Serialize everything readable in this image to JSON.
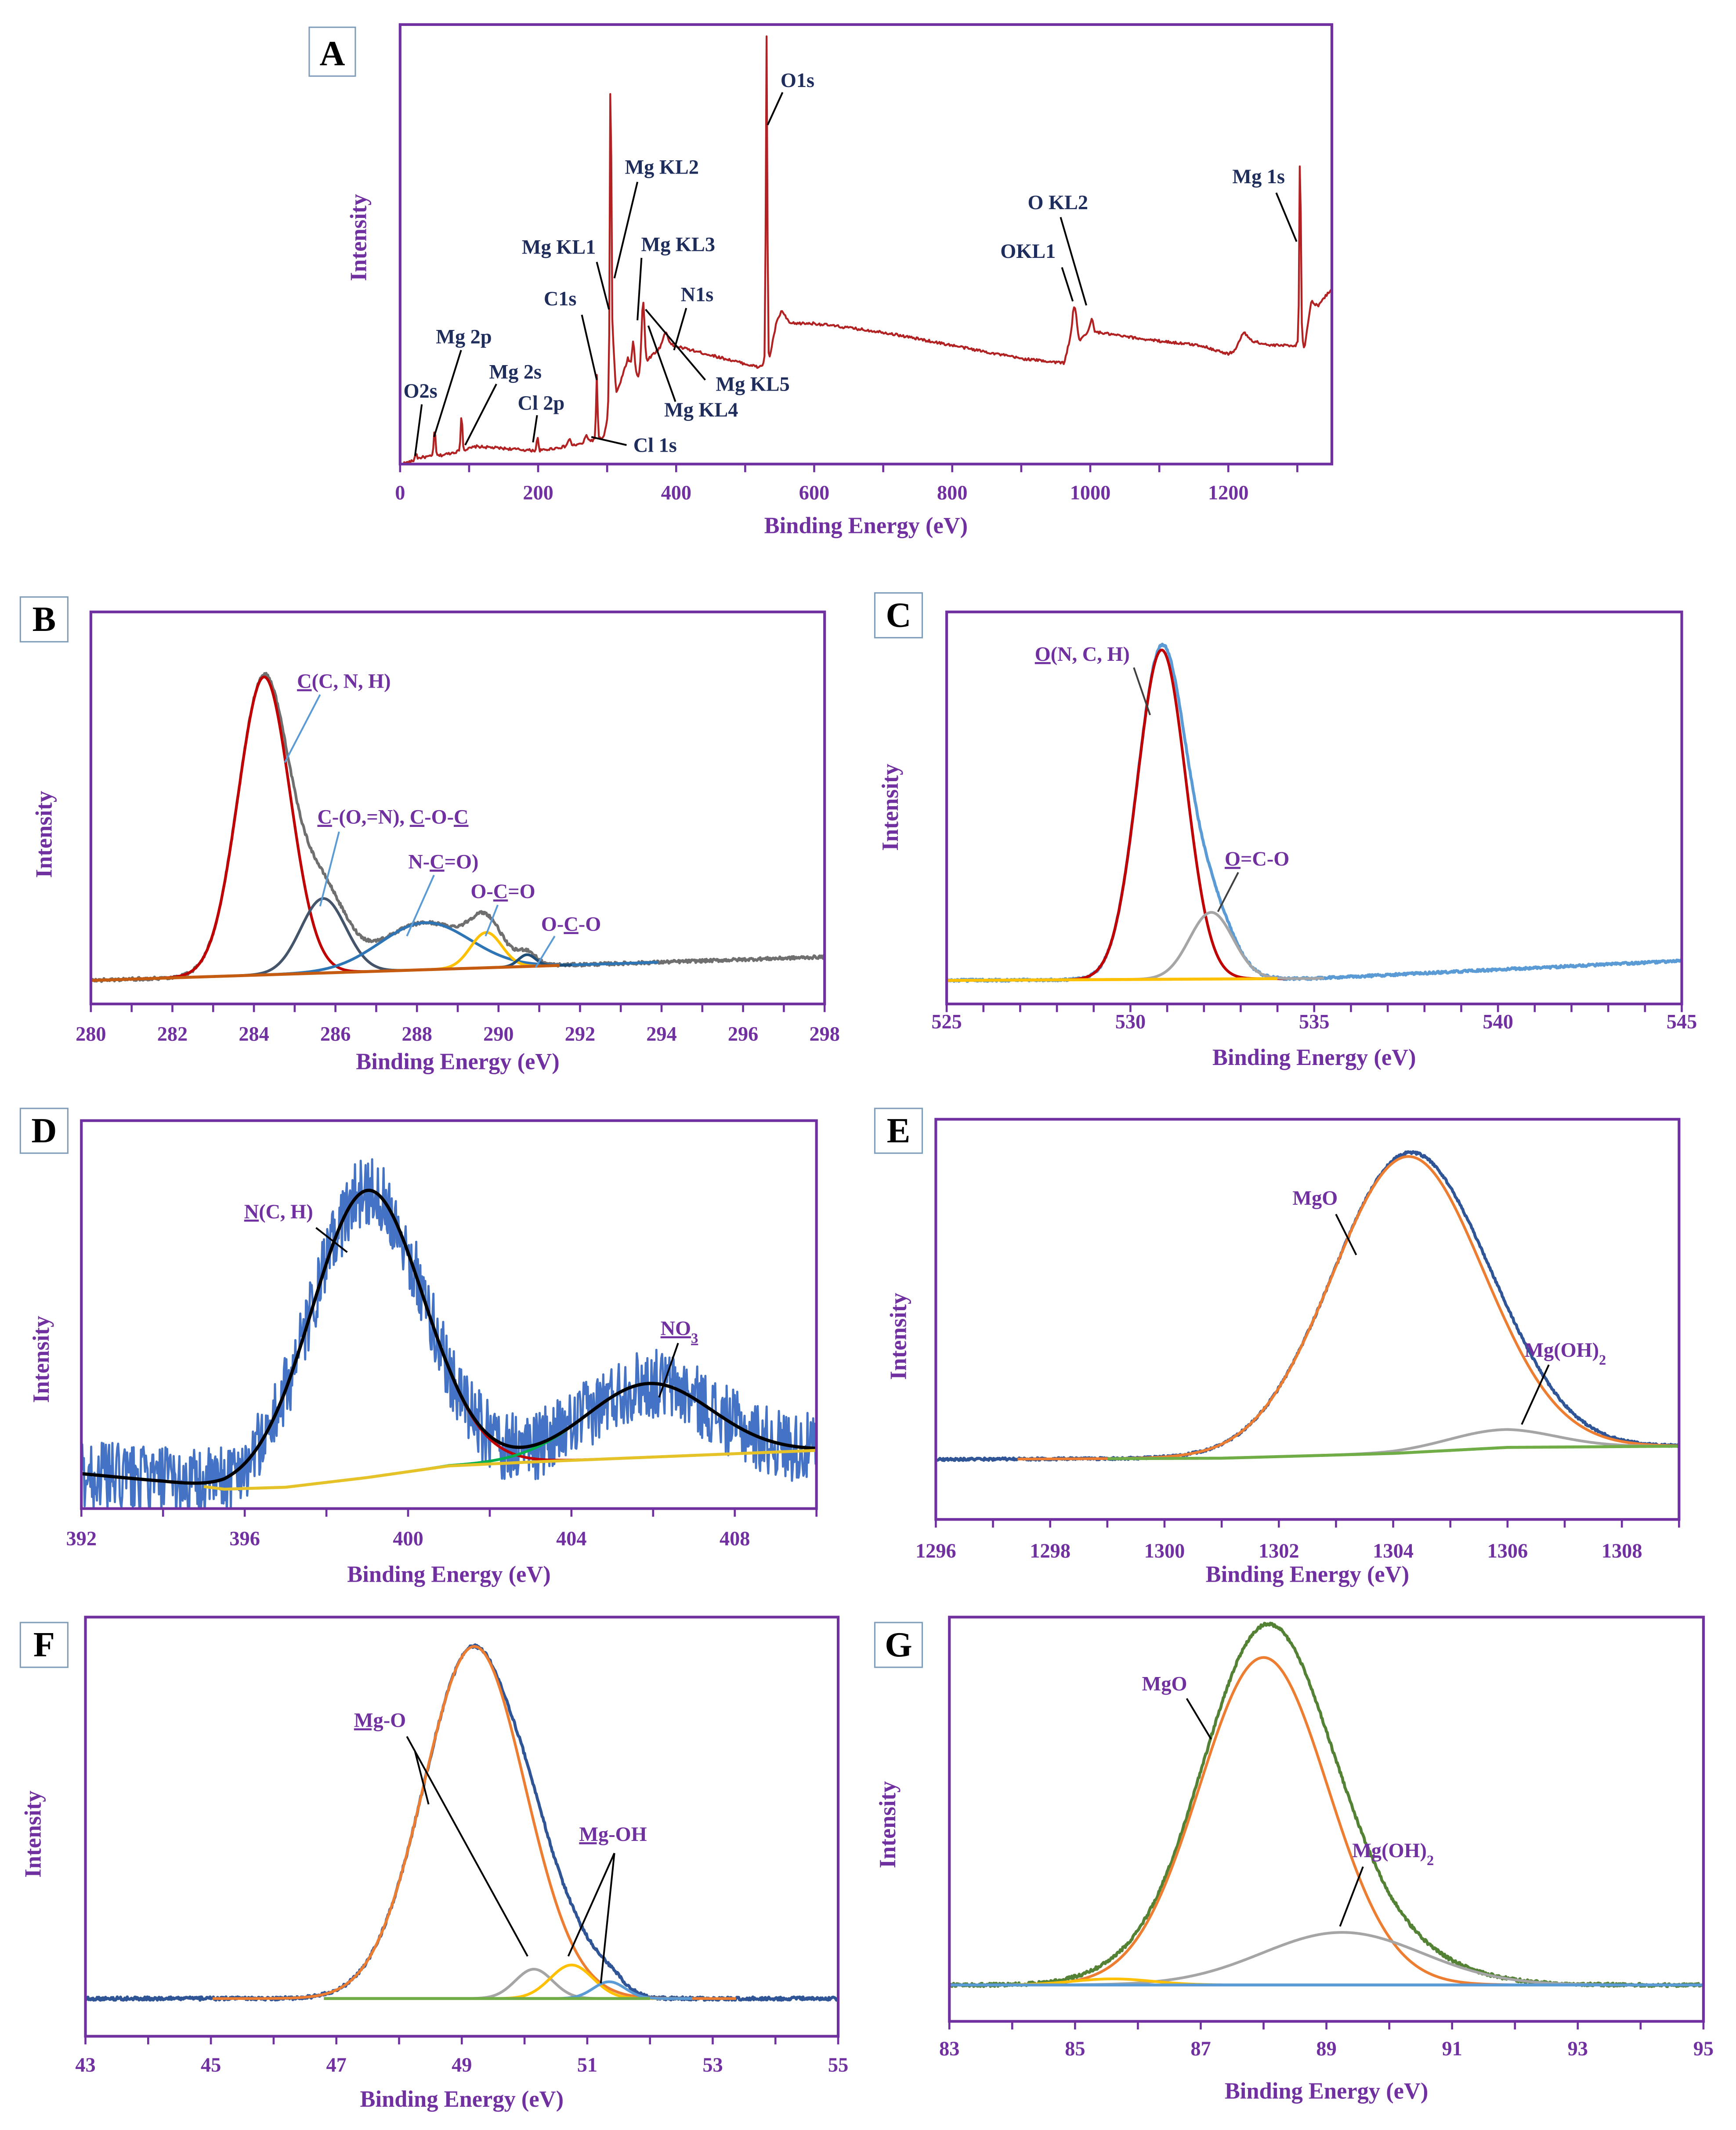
{
  "chart_data": [
    {
      "panel_label": "A",
      "type": "line",
      "xlabel": "Binding Energy (eV)",
      "ylabel": "Intensity",
      "xlim": [
        0,
        1350
      ],
      "ylim": [
        0,
        100
      ],
      "xticks": [
        0,
        200,
        400,
        600,
        800,
        1000,
        1200
      ],
      "minor_step": 100,
      "annotation_color": "#1f2d5c",
      "leader_color": "#000000",
      "background": [
        [
          0,
          0
        ],
        [
          15,
          0.5
        ],
        [
          30,
          1.5
        ],
        [
          60,
          2
        ],
        [
          100,
          3.5
        ],
        [
          110,
          4
        ],
        [
          200,
          3
        ],
        [
          260,
          4.5
        ],
        [
          280,
          5.5
        ],
        [
          295,
          6
        ],
        [
          300,
          10
        ],
        [
          308,
          30
        ],
        [
          313,
          16
        ],
        [
          320,
          19
        ],
        [
          330,
          24
        ],
        [
          345,
          20
        ],
        [
          360,
          24
        ],
        [
          380,
          27
        ],
        [
          395,
          27
        ],
        [
          420,
          26
        ],
        [
          520,
          22
        ],
        [
          528,
          23
        ],
        [
          535,
          24
        ],
        [
          545,
          32
        ],
        [
          553,
          35
        ],
        [
          560,
          33
        ],
        [
          565,
          32
        ],
        [
          600,
          32
        ],
        [
          700,
          30
        ],
        [
          800,
          27
        ],
        [
          900,
          24
        ],
        [
          962,
          23
        ],
        [
          970,
          28
        ],
        [
          975,
          33
        ],
        [
          985,
          28
        ],
        [
          995,
          30
        ],
        [
          1010,
          30
        ],
        [
          1050,
          29
        ],
        [
          1100,
          28
        ],
        [
          1160,
          27
        ],
        [
          1200,
          25
        ],
        [
          1210,
          26
        ],
        [
          1222,
          30
        ],
        [
          1235,
          28
        ],
        [
          1260,
          27
        ],
        [
          1298,
          27
        ],
        [
          1306,
          30
        ],
        [
          1310,
          26
        ],
        [
          1320,
          37
        ],
        [
          1330,
          36
        ],
        [
          1350,
          40
        ]
      ],
      "background_drawn": false,
      "peaks": [
        {
          "name": "O2s",
          "center": 23,
          "amplitude": 1.5,
          "fwhm": 3
        },
        {
          "name": "Mg 2p",
          "center": 50,
          "amplitude": 6,
          "fwhm": 3
        },
        {
          "name": "Mg 2s",
          "center": 89,
          "amplitude": 8,
          "fwhm": 3
        },
        {
          "name": "Cl 2p",
          "center": 199,
          "amplitude": 3,
          "fwhm": 3
        },
        {
          "name": "",
          "center": 245,
          "amplitude": 1.5,
          "fwhm": 5
        },
        {
          "name": "Cl 1s",
          "center": 270,
          "amplitude": 1.5,
          "fwhm": 5
        },
        {
          "name": "C1s",
          "center": 285,
          "amplitude": 14.5,
          "fwhm": 2.5
        },
        {
          "name": "Mg KL2",
          "center": 305,
          "amplitude": 70,
          "fwhm": 2.5
        },
        {
          "name": "",
          "center": 338,
          "amplitude": 6,
          "fwhm": 4
        },
        {
          "name": "Mg KL3",
          "center": 352,
          "amplitude": 15,
          "fwhm": 5
        },
        {
          "name": "N1s",
          "center": 385,
          "amplitude": 3,
          "fwhm": 8
        },
        {
          "name": "O1s",
          "center": 531,
          "amplitude": 74,
          "fwhm": 2.5
        },
        {
          "name": "OKL1",
          "center": 978,
          "amplitude": 4,
          "fwhm": 5
        },
        {
          "name": "O KL2",
          "center": 1002,
          "amplitude": 3,
          "fwhm": 5
        },
        {
          "name": "Mg 1s",
          "center": 1304,
          "amplitude": 43,
          "fwhm": 2.5
        }
      ],
      "components": [],
      "measured": {
        "name": "Survey spectrum",
        "color": "#b22222",
        "noise": 0.3,
        "width": 1.4
      },
      "envelope": null,
      "annotations": [
        {
          "parts": [
            {
              "t": "O2s"
            }
          ]
        },
        {
          "parts": [
            {
              "t": "Mg 2p"
            }
          ]
        },
        {
          "parts": [
            {
              "t": "Mg 2s"
            }
          ]
        },
        {
          "parts": [
            {
              "t": "Cl 2p"
            }
          ]
        },
        {
          "parts": [
            {
              "t": "Cl 1s"
            }
          ]
        },
        {
          "parts": [
            {
              "t": "C1s"
            }
          ]
        },
        {
          "parts": [
            {
              "t": "Mg KL1"
            }
          ]
        },
        {
          "parts": [
            {
              "t": "Mg KL2"
            }
          ]
        },
        {
          "parts": [
            {
              "t": "Mg KL3"
            }
          ]
        },
        {
          "parts": [
            {
              "t": "N1s"
            }
          ]
        },
        {
          "parts": [
            {
              "t": "Mg KL5"
            }
          ]
        },
        {
          "parts": [
            {
              "t": "Mg KL4"
            }
          ]
        },
        {
          "parts": [
            {
              "t": "O1s"
            }
          ]
        },
        {
          "parts": [
            {
              "t": "OKL1"
            }
          ]
        },
        {
          "parts": [
            {
              "t": "O KL2"
            }
          ]
        },
        {
          "parts": [
            {
              "t": "Mg 1s"
            }
          ]
        }
      ]
    },
    {
      "panel_label": "B",
      "type": "line",
      "xlabel": "Binding Energy (eV)",
      "ylabel": "Intensity",
      "xlim": [
        280,
        298
      ],
      "ylim": [
        0,
        100
      ],
      "xticks": [
        280,
        282,
        284,
        286,
        288,
        290,
        292,
        294,
        296,
        298
      ],
      "minor_step": 1,
      "annotation_color": "#7030a0",
      "leader_color": "#5b9bd5",
      "background": [
        [
          280,
          6
        ],
        [
          298,
          12
        ]
      ],
      "background_drawn": true,
      "background_color": "#c55a11",
      "background_range": [
        280,
        291.5
      ],
      "peaks": [],
      "components": [
        {
          "name": "C(C, N, H)",
          "center": 284.25,
          "amplitude": 76,
          "fwhm": 1.5,
          "color": "#c00000"
        },
        {
          "name": "C-(O,=N), C-O-C",
          "center": 285.7,
          "amplitude": 19,
          "fwhm": 1.3,
          "color": "#44546a"
        },
        {
          "name": "N-C=O)",
          "center": 288.2,
          "amplitude": 12,
          "fwhm": 2.6,
          "color": "#2e75b6"
        },
        {
          "name": "O-C=O",
          "center": 289.7,
          "amplitude": 9,
          "fwhm": 0.9,
          "color": "#ffc000"
        },
        {
          "name": "O-C-O",
          "center": 290.7,
          "amplitude": 3,
          "fwhm": 0.5,
          "color": "#1f4e79"
        }
      ],
      "measured": {
        "name": "C 1s",
        "color": "#6f6f6f",
        "noise": 0.4,
        "width": 2
      },
      "envelope": null,
      "annotations": [
        {
          "parts": [
            {
              "t": "C",
              "u": true
            },
            {
              "t": "(C, N, H)"
            }
          ]
        },
        {
          "parts": [
            {
              "t": "C",
              "u": true
            },
            {
              "t": "-(O,=N), "
            },
            {
              "t": "C",
              "u": true
            },
            {
              "t": "-O-"
            },
            {
              "t": "C",
              "u": true
            }
          ]
        },
        {
          "parts": [
            {
              "t": "N-"
            },
            {
              "t": "C",
              "u": true
            },
            {
              "t": "=O)"
            }
          ]
        },
        {
          "parts": [
            {
              "t": "O-"
            },
            {
              "t": "C",
              "u": true
            },
            {
              "t": "=O"
            }
          ]
        },
        {
          "parts": [
            {
              "t": "O-"
            },
            {
              "t": "C",
              "u": true
            },
            {
              "t": "-O"
            }
          ]
        }
      ]
    },
    {
      "panel_label": "C",
      "type": "line",
      "xlabel": "Binding Energy (eV)",
      "ylabel": "Intensity",
      "xlim": [
        525,
        545
      ],
      "ylim": [
        0,
        100
      ],
      "xticks": [
        525,
        530,
        535,
        540,
        545
      ],
      "minor_step": 1,
      "annotation_color": "#7030a0",
      "leader_color": "#404040",
      "background": [
        [
          525,
          6
        ],
        [
          535,
          6.5
        ],
        [
          545,
          11
        ]
      ],
      "background_drawn": true,
      "background_color": "#ffc000",
      "background_range": [
        525,
        534
      ],
      "peaks": [],
      "components": [
        {
          "name": "O(N, C, H)",
          "center": 530.85,
          "amplitude": 84,
          "fwhm": 1.55,
          "color": "#c00000"
        },
        {
          "name": "O=C-O",
          "center": 532.2,
          "amplitude": 17,
          "fwhm": 1.4,
          "color": "#a5a5a5"
        }
      ],
      "measured": {
        "name": "O 1s",
        "color": "#5b9bd5",
        "noise": 0.3,
        "width": 2.2
      },
      "envelope": null,
      "annotations": [
        {
          "parts": [
            {
              "t": "O",
              "u": true
            },
            {
              "t": "(N, C, H)"
            }
          ]
        },
        {
          "parts": [
            {
              "t": "O",
              "u": true
            },
            {
              "t": "=C-O"
            }
          ]
        }
      ]
    },
    {
      "panel_label": "D",
      "type": "line",
      "xlabel": "Binding Energy (eV)",
      "ylabel": "Intensity",
      "xlim": [
        392,
        410
      ],
      "ylim": [
        0,
        100
      ],
      "xticks": [
        392,
        396,
        400,
        404,
        408
      ],
      "minor_step": 2,
      "annotation_color": "#7030a0",
      "leader_color": "#000000",
      "background": [
        [
          392,
          9
        ],
        [
          394,
          7
        ],
        [
          395.5,
          5
        ],
        [
          397,
          5.5
        ],
        [
          399,
          8
        ],
        [
          401,
          11
        ],
        [
          403,
          12
        ],
        [
          410,
          15
        ]
      ],
      "background_drawn": true,
      "background_color": "#e6c229",
      "background_range": [
        395,
        410
      ],
      "peaks": [],
      "components": [
        {
          "name": "N(C, H)",
          "center": 399,
          "amplitude": 74,
          "fwhm": 3.2,
          "color": "#c00000"
        },
        {
          "name": "NO3",
          "center": 405.9,
          "amplitude": 19,
          "fwhm": 3.6,
          "color": "#00b050"
        }
      ],
      "measured": {
        "name": "N 1s",
        "color": "#4472c4",
        "noise": 9,
        "width": 1.6
      },
      "envelope": {
        "name": "Fit envelope",
        "color": "#000000",
        "width": 2.4
      },
      "annotations": [
        {
          "parts": [
            {
              "t": "N",
              "u": true
            },
            {
              "t": "(C, H)"
            }
          ]
        },
        {
          "parts": [
            {
              "t": "NO",
              "u": true
            },
            {
              "t": "3",
              "sub": true,
              "u": true
            }
          ]
        }
      ]
    },
    {
      "panel_label": "E",
      "type": "line",
      "xlabel": "Binding Energy (eV)",
      "ylabel": "Intensity",
      "xlim": [
        1296,
        1309
      ],
      "ylim": [
        0,
        100
      ],
      "xticks": [
        1296,
        1298,
        1300,
        1302,
        1304,
        1306,
        1308
      ],
      "minor_step": 1,
      "annotation_color": "#7030a0",
      "leader_color": "#000000",
      "background": [
        [
          1296,
          15
        ],
        [
          1301,
          15.3
        ],
        [
          1304,
          16.5
        ],
        [
          1306,
          18
        ],
        [
          1309,
          18.3
        ]
      ],
      "background_drawn": true,
      "background_color": "#70ad47",
      "background_range": [
        1299,
        1309
      ],
      "peaks": [],
      "components": [
        {
          "name": "MgO",
          "center": 1304.25,
          "amplitude": 74,
          "fwhm": 3.1,
          "color": "#ed7d31"
        },
        {
          "name": "Mg(OH)2",
          "center": 1305.9,
          "amplitude": 4.5,
          "fwhm": 2.2,
          "color": "#a5a5a5"
        }
      ],
      "measured": {
        "name": "Mg 1s",
        "color": "#2f5597",
        "noise": 0.3,
        "width": 2.2
      },
      "envelope": null,
      "annotations": [
        {
          "parts": [
            {
              "t": "MgO"
            }
          ]
        },
        {
          "parts": [
            {
              "t": "Mg(OH)"
            },
            {
              "t": "2",
              "sub": true
            }
          ]
        }
      ]
    },
    {
      "panel_label": "F",
      "type": "line",
      "xlabel": "Binding Energy (eV)",
      "ylabel": "Intensity",
      "xlim": [
        43,
        55
      ],
      "ylim": [
        0,
        100
      ],
      "xticks": [
        43,
        45,
        47,
        49,
        51,
        53,
        55
      ],
      "minor_step": 1,
      "annotation_color": "#7030a0",
      "leader_color": "#000000",
      "background": [
        [
          43,
          9
        ],
        [
          55,
          9
        ]
      ],
      "background_drawn": true,
      "background_color": "#70ad47",
      "background_range": [
        46.8,
        52
      ],
      "peaks": [],
      "components": [
        {
          "name": "Mg-O",
          "center": 49.2,
          "amplitude": 84,
          "fwhm": 1.9,
          "color": "#ed7d31"
        },
        {
          "name": "Mg-O",
          "center": 50.15,
          "amplitude": 7,
          "fwhm": 0.7,
          "color": "#a5a5a5"
        },
        {
          "name": "Mg-OH",
          "center": 50.75,
          "amplitude": 8,
          "fwhm": 0.8,
          "color": "#ffc000"
        },
        {
          "name": "Mg-OH",
          "center": 51.35,
          "amplitude": 4,
          "fwhm": 0.6,
          "color": "#5b9bd5"
        }
      ],
      "measured": {
        "name": "Mg 2p",
        "color": "#2f5597",
        "noise": 0.4,
        "width": 2.2
      },
      "envelope": null,
      "annotations": [
        {
          "parts": [
            {
              "t": "Mg",
              "u": true
            },
            {
              "t": "-O"
            }
          ]
        },
        {
          "parts": [
            {
              "t": "Mg",
              "u": true
            },
            {
              "t": "-OH"
            }
          ]
        }
      ]
    },
    {
      "panel_label": "G",
      "type": "line",
      "xlabel": "Binding Energy (eV)",
      "ylabel": "Intensity",
      "xlim": [
        83,
        95
      ],
      "ylim": [
        0,
        100
      ],
      "xticks": [
        83,
        85,
        87,
        89,
        91,
        93,
        95
      ],
      "minor_step": 1,
      "annotation_color": "#7030a0",
      "leader_color": "#000000",
      "background": [
        [
          83,
          9
        ],
        [
          95,
          9
        ]
      ],
      "background_drawn": true,
      "background_color": "#5b9bd5",
      "background_range": [
        83,
        95
      ],
      "peaks": [],
      "components": [
        {
          "name": "MgO",
          "center": 88.0,
          "amplitude": 81,
          "fwhm": 2.4,
          "color": "#ed7d31"
        },
        {
          "name": "Mg(OH)2",
          "center": 89.25,
          "amplitude": 13,
          "fwhm": 3.0,
          "color": "#a5a5a5"
        },
        {
          "name": "",
          "center": 85.6,
          "amplitude": 1.5,
          "fwhm": 1.5,
          "color": "#ffc000"
        }
      ],
      "measured": {
        "name": "Mg 2s",
        "color": "#548235",
        "noise": 0.4,
        "width": 2.2
      },
      "envelope": null,
      "annotations": [
        {
          "parts": [
            {
              "t": "MgO"
            }
          ]
        },
        {
          "parts": [
            {
              "t": "Mg(OH)"
            },
            {
              "t": "2",
              "sub": true
            }
          ]
        }
      ]
    }
  ]
}
